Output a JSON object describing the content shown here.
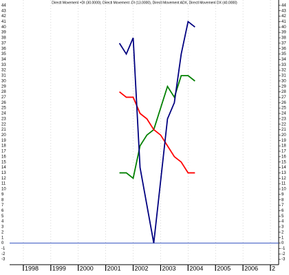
{
  "chart_data": {
    "type": "line",
    "title": "Directl Movement +DI (30.0000), Directl Movement -DI (13.0000), Directl Movement ADX, Directl Movement DX (40.0000)",
    "x": [
      2001.5,
      2001.75,
      2002,
      2002.25,
      2002.5,
      2002.75,
      2003,
      2003.25,
      2003.5,
      2003.75,
      2004,
      2004.25
    ],
    "series": [
      {
        "name": "Directl Movement +DI",
        "color": "#008000",
        "values": [
          13,
          13,
          12,
          18,
          20,
          21,
          25,
          29,
          27,
          31,
          31,
          30
        ]
      },
      {
        "name": "Directl Movement -DI",
        "color": "#ff0000",
        "values": [
          28,
          27,
          27,
          24,
          23,
          21,
          20,
          18,
          16,
          15,
          13,
          13
        ]
      },
      {
        "name": "Directl Movement ADX",
        "color": "#000080",
        "values": [
          37,
          35,
          38,
          14,
          7,
          0,
          11.5,
          23,
          26,
          35,
          41,
          40
        ]
      }
    ],
    "xlim": [
      1997.5,
      2007.3
    ],
    "xticks": [
      1998,
      1999,
      2000,
      2001,
      2002,
      2003,
      2004,
      2005,
      2006,
      {
        "value": 2007,
        "label": "2"
      }
    ],
    "ylim": [
      -4,
      45
    ],
    "yticks": [
      -3,
      -2,
      -1,
      0,
      1,
      2,
      3,
      4,
      5,
      6,
      7,
      8,
      9,
      10,
      11,
      12,
      13,
      14,
      15,
      16,
      17,
      18,
      19,
      20,
      21,
      22,
      23,
      24,
      25,
      26,
      27,
      28,
      29,
      30,
      31,
      32,
      33,
      34,
      35,
      36,
      37,
      38,
      39,
      40,
      41,
      42,
      43,
      44
    ],
    "grid": true,
    "zero_line_color": "#3050c0"
  }
}
